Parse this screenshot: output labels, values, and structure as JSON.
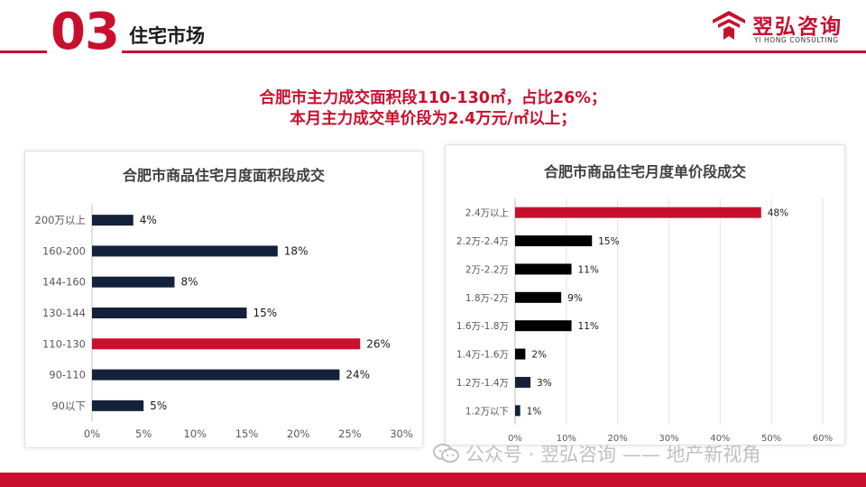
{
  "header": {
    "section_number": "03",
    "section_title": "住宅市场",
    "logo_cn": "翌弘咨询",
    "logo_en": "YI HONG CONSULTING",
    "accent_color": "#c8102e"
  },
  "headline": {
    "line1": "合肥市主力成交面积段110-130㎡，占比26%；",
    "line2": "本月主力成交单价段为2.4万元/㎡以上；"
  },
  "watermark": "公众号 · 翌弘咨询 —— 地产新视角",
  "chart_data": [
    {
      "type": "bar",
      "orientation": "horizontal",
      "title": "合肥市商品住宅月度面积段成交",
      "categories": [
        "200万以上",
        "160-200",
        "144-160",
        "130-144",
        "110-130",
        "90-110",
        "90以下"
      ],
      "values": [
        4,
        18,
        8,
        15,
        26,
        24,
        5
      ],
      "value_labels": [
        "4%",
        "18%",
        "8%",
        "15%",
        "26%",
        "24%",
        "5%"
      ],
      "highlight_index": 4,
      "xlim": [
        0,
        30
      ],
      "xticks": [
        "0%",
        "5%",
        "10%",
        "15%",
        "20%",
        "25%",
        "30%"
      ],
      "bar_color": "#14213a",
      "highlight_color": "#c8102e",
      "grid": false,
      "legend": "none"
    },
    {
      "type": "bar",
      "orientation": "horizontal",
      "title": "合肥市商品住宅月度单价段成交",
      "categories": [
        "2.4万以上",
        "2.2万-2.4万",
        "2万-2.2万",
        "1.8万-2万",
        "1.6万-1.8万",
        "1.4万-1.6万",
        "1.2万-1.4万",
        "1.2万以下"
      ],
      "values": [
        48,
        15,
        11,
        9,
        11,
        2,
        3,
        1
      ],
      "value_labels": [
        "48%",
        "15%",
        "11%",
        "9%",
        "11%",
        "2%",
        "3%",
        "1%"
      ],
      "highlight_index": 0,
      "xlim": [
        0,
        60
      ],
      "xticks": [
        "0%",
        "10%",
        "20%",
        "30%",
        "40%",
        "50%",
        "60%"
      ],
      "bar_color": "#000000",
      "bar_color_alt": "#14213a",
      "highlight_color": "#c8102e",
      "grid": true,
      "legend": "none"
    }
  ]
}
